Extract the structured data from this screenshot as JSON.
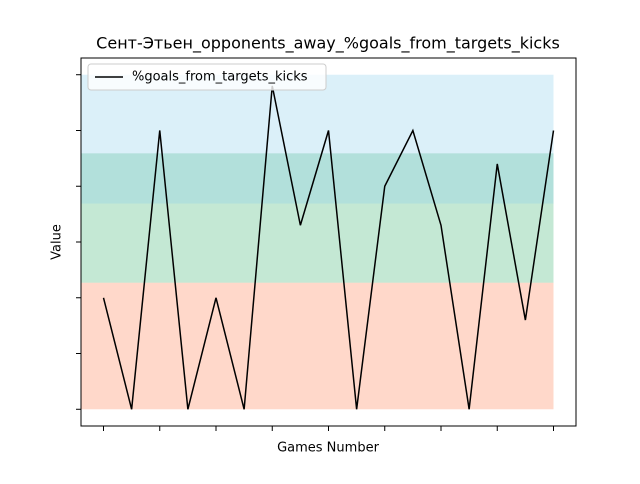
{
  "chart_data": {
    "type": "line",
    "title": "Сент-Этьен_opponents_away_%goals_from_targets_kicks",
    "xlabel": "Games Number",
    "ylabel": "Value",
    "x": [
      1,
      2,
      3,
      4,
      5,
      6,
      7,
      8,
      9,
      10,
      11,
      12,
      13,
      14,
      15,
      16,
      17
    ],
    "series": [
      {
        "name": "%goals_from_targets_kicks",
        "color": "#000000",
        "values": [
          0.2,
          0,
          0.5,
          0,
          0.2,
          0,
          0.58,
          0.33,
          0.5,
          0,
          0.4,
          0.5,
          0.33,
          0,
          0.44,
          0.16,
          0.5
        ]
      }
    ],
    "bands": [
      {
        "from": 0,
        "to": 0.227,
        "color": "#ff7f50"
      },
      {
        "from": 0.227,
        "to": 0.459,
        "color": "#3cb371"
      },
      {
        "from": 0.369,
        "to": 0.6,
        "color": "#87ceeb"
      }
    ],
    "xlim": [
      0.2,
      17.8
    ],
    "xticks": [
      1,
      3,
      5,
      7,
      9,
      11,
      13,
      15,
      17
    ],
    "ylim": [
      -0.03,
      0.63
    ],
    "yticks": [
      0,
      0.1,
      0.2,
      0.3,
      0.4,
      0.5,
      0.6
    ],
    "legend": "upper left"
  }
}
